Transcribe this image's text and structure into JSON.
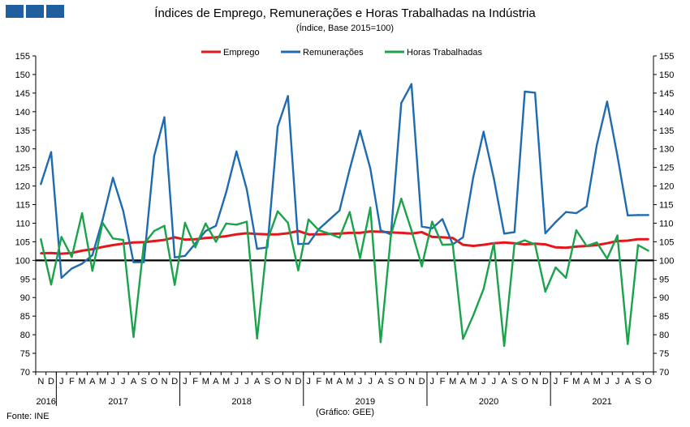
{
  "header": {
    "title": "Índices de Emprego, Remunerações e Horas Trabalhadas na Indústria",
    "subtitle": "(Índice, Base 2015=100)"
  },
  "footer": {
    "source": "Fonte: INE",
    "credit": "(Gráfico: GEE)"
  },
  "colors": {
    "logo": "#1f5fa0",
    "emprego": "#e3161b",
    "remuneracoes": "#1f6bb1",
    "horas": "#1aa34a",
    "baseline": "#000000"
  },
  "chart_data": {
    "type": "line",
    "title": "Índices de Emprego, Remunerações e Horas Trabalhadas na Indústria",
    "subtitle": "(Índice, Base 2015=100)",
    "ylim": [
      70,
      155
    ],
    "yticks": [
      70,
      75,
      80,
      85,
      90,
      95,
      100,
      105,
      110,
      115,
      120,
      125,
      130,
      135,
      140,
      145,
      150,
      155
    ],
    "y_axis_both_sides": true,
    "grid": false,
    "legend_position": "top-center",
    "reference_line": 100,
    "x": [
      "2016-11",
      "2016-12",
      "2017-01",
      "2017-02",
      "2017-03",
      "2017-04",
      "2017-05",
      "2017-06",
      "2017-07",
      "2017-08",
      "2017-09",
      "2017-10",
      "2017-11",
      "2017-12",
      "2018-01",
      "2018-02",
      "2018-03",
      "2018-04",
      "2018-05",
      "2018-06",
      "2018-07",
      "2018-08",
      "2018-09",
      "2018-10",
      "2018-11",
      "2018-12",
      "2019-01",
      "2019-02",
      "2019-03",
      "2019-04",
      "2019-05",
      "2019-06",
      "2019-07",
      "2019-08",
      "2019-09",
      "2019-10",
      "2019-11",
      "2019-12",
      "2020-01",
      "2020-02",
      "2020-03",
      "2020-04",
      "2020-05",
      "2020-06",
      "2020-07",
      "2020-08",
      "2020-09",
      "2020-10",
      "2020-11",
      "2020-12",
      "2021-01",
      "2021-02",
      "2021-03",
      "2021-04",
      "2021-05",
      "2021-06",
      "2021-07",
      "2021-08",
      "2021-09",
      "2021-10"
    ],
    "month_labels": [
      "N",
      "D",
      "J",
      "F",
      "M",
      "A",
      "M",
      "J",
      "J",
      "A",
      "S",
      "O",
      "N",
      "D",
      "J",
      "F",
      "M",
      "A",
      "M",
      "J",
      "J",
      "A",
      "S",
      "O",
      "N",
      "D",
      "J",
      "F",
      "M",
      "A",
      "M",
      "J",
      "J",
      "A",
      "S",
      "O",
      "N",
      "D",
      "J",
      "F",
      "M",
      "A",
      "M",
      "J",
      "J",
      "A",
      "S",
      "O",
      "N",
      "D",
      "J",
      "F",
      "M",
      "A",
      "M",
      "J",
      "J",
      "A",
      "S",
      "O"
    ],
    "year_labels": [
      {
        "label": "2016",
        "start": 0,
        "end": 1
      },
      {
        "label": "2017",
        "start": 2,
        "end": 13
      },
      {
        "label": "2018",
        "start": 14,
        "end": 25
      },
      {
        "label": "2019",
        "start": 26,
        "end": 37
      },
      {
        "label": "2020",
        "start": 38,
        "end": 49
      },
      {
        "label": "2021",
        "start": 50,
        "end": 59
      }
    ],
    "series": [
      {
        "name": "Emprego",
        "color": "#e3161b",
        "values": [
          101.9,
          102.0,
          101.8,
          102.0,
          102.6,
          103.0,
          103.6,
          104.1,
          104.5,
          104.8,
          104.9,
          105.2,
          105.5,
          106.2,
          105.6,
          105.7,
          106.0,
          106.2,
          106.5,
          107.0,
          107.3,
          107.1,
          107.0,
          107.0,
          107.3,
          107.9,
          107.0,
          107.0,
          107.1,
          107.2,
          107.4,
          107.4,
          107.8,
          107.7,
          107.5,
          107.4,
          107.2,
          107.6,
          106.3,
          106.2,
          106.0,
          104.2,
          103.9,
          104.2,
          104.6,
          104.8,
          104.6,
          104.3,
          104.5,
          104.3,
          103.5,
          103.4,
          103.7,
          103.9,
          104.1,
          104.6,
          105.2,
          105.3,
          105.7,
          105.7
        ]
      },
      {
        "name": "Remunerações",
        "color": "#1f6bb1",
        "values": [
          120.5,
          129.1,
          95.3,
          97.8,
          99.1,
          101.4,
          110.9,
          122.2,
          113.3,
          99.5,
          99.5,
          128.1,
          138.5,
          100.8,
          101.2,
          104.5,
          107.9,
          109.3,
          118.3,
          129.3,
          119.1,
          103.1,
          103.5,
          136.0,
          144.2,
          104.4,
          104.5,
          108.4,
          110.9,
          113.4,
          124.5,
          134.9,
          124.7,
          108.1,
          107.0,
          142.3,
          147.4,
          109.1,
          108.6,
          111.1,
          104.3,
          106.2,
          122.4,
          134.6,
          122.0,
          107.2,
          107.6,
          145.4,
          145.1,
          107.3,
          110.3,
          113.0,
          112.7,
          114.5,
          131.0,
          142.7,
          128.1,
          112.1,
          112.2,
          112.2
        ]
      },
      {
        "name": "Horas Trabalhadas",
        "color": "#1aa34a",
        "values": [
          105.7,
          93.5,
          106.3,
          100.9,
          112.7,
          97.2,
          110.1,
          105.9,
          105.5,
          79.4,
          104.4,
          107.9,
          109.3,
          93.4,
          110.1,
          103.5,
          109.9,
          105.0,
          109.9,
          109.6,
          110.4,
          79.0,
          105.4,
          113.2,
          110.1,
          97.3,
          111.0,
          108.1,
          107.2,
          106.1,
          113.0,
          100.6,
          114.2,
          78.0,
          106.8,
          116.6,
          108.1,
          98.4,
          110.4,
          104.2,
          104.3,
          78.9,
          85.2,
          92.3,
          104.6,
          77.0,
          104.4,
          105.4,
          104.3,
          91.6,
          98.1,
          95.3,
          108.1,
          103.9,
          104.8,
          100.5,
          106.7,
          77.5,
          104.1,
          102.6
        ]
      }
    ]
  }
}
